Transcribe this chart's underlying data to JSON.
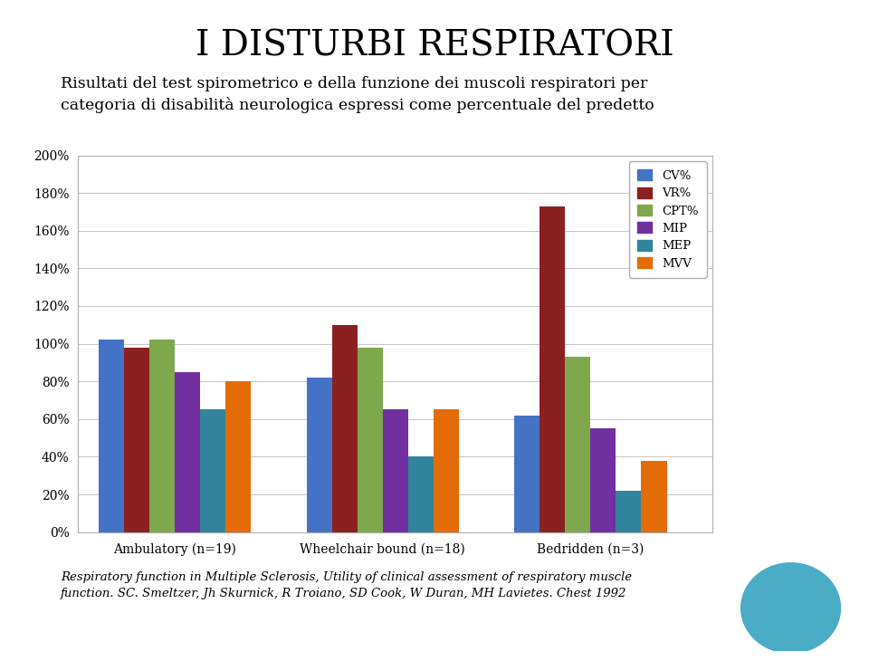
{
  "title": "I DISTURBI RESPIRATORI",
  "subtitle": "Risultati del test spirometrico e della funzione dei muscoli respiratori per\ncategoria di disabilità neurologica espressi come percentuale del predetto",
  "categories": [
    "Ambulatory (n=19)",
    "Wheelchair bound (n=18)",
    "Bedridden (n=3)"
  ],
  "series_names": [
    "CV%",
    "VR%",
    "CPT%",
    "MIP",
    "MEP",
    "MVV"
  ],
  "series_colors": [
    "#4472C4",
    "#8B2020",
    "#7EA84B",
    "#7030A0",
    "#31849B",
    "#E36C09"
  ],
  "values": [
    [
      102,
      98,
      102,
      85,
      65,
      80
    ],
    [
      82,
      110,
      98,
      65,
      40,
      65
    ],
    [
      62,
      173,
      93,
      55,
      22,
      38
    ]
  ],
  "ylim": [
    0,
    200
  ],
  "yticks": [
    0,
    20,
    40,
    60,
    80,
    100,
    120,
    140,
    160,
    180,
    200
  ],
  "ytick_labels": [
    "0%",
    "20%",
    "40%",
    "60%",
    "80%",
    "100%",
    "120%",
    "140%",
    "160%",
    "180%",
    "200%"
  ],
  "footnote": "Respiratory function in Multiple Sclerosis, Utility of clinical assessment of respiratory muscle\nfunction. SC. Smeltzer, Jh Skurnick, R Troiano, SD Cook, W Duran, MH Lavietes. Chest 1992",
  "circle_color": "#4BACC6",
  "background_color": "#FFFFFF",
  "chart_border_color": "#B0B0B0"
}
